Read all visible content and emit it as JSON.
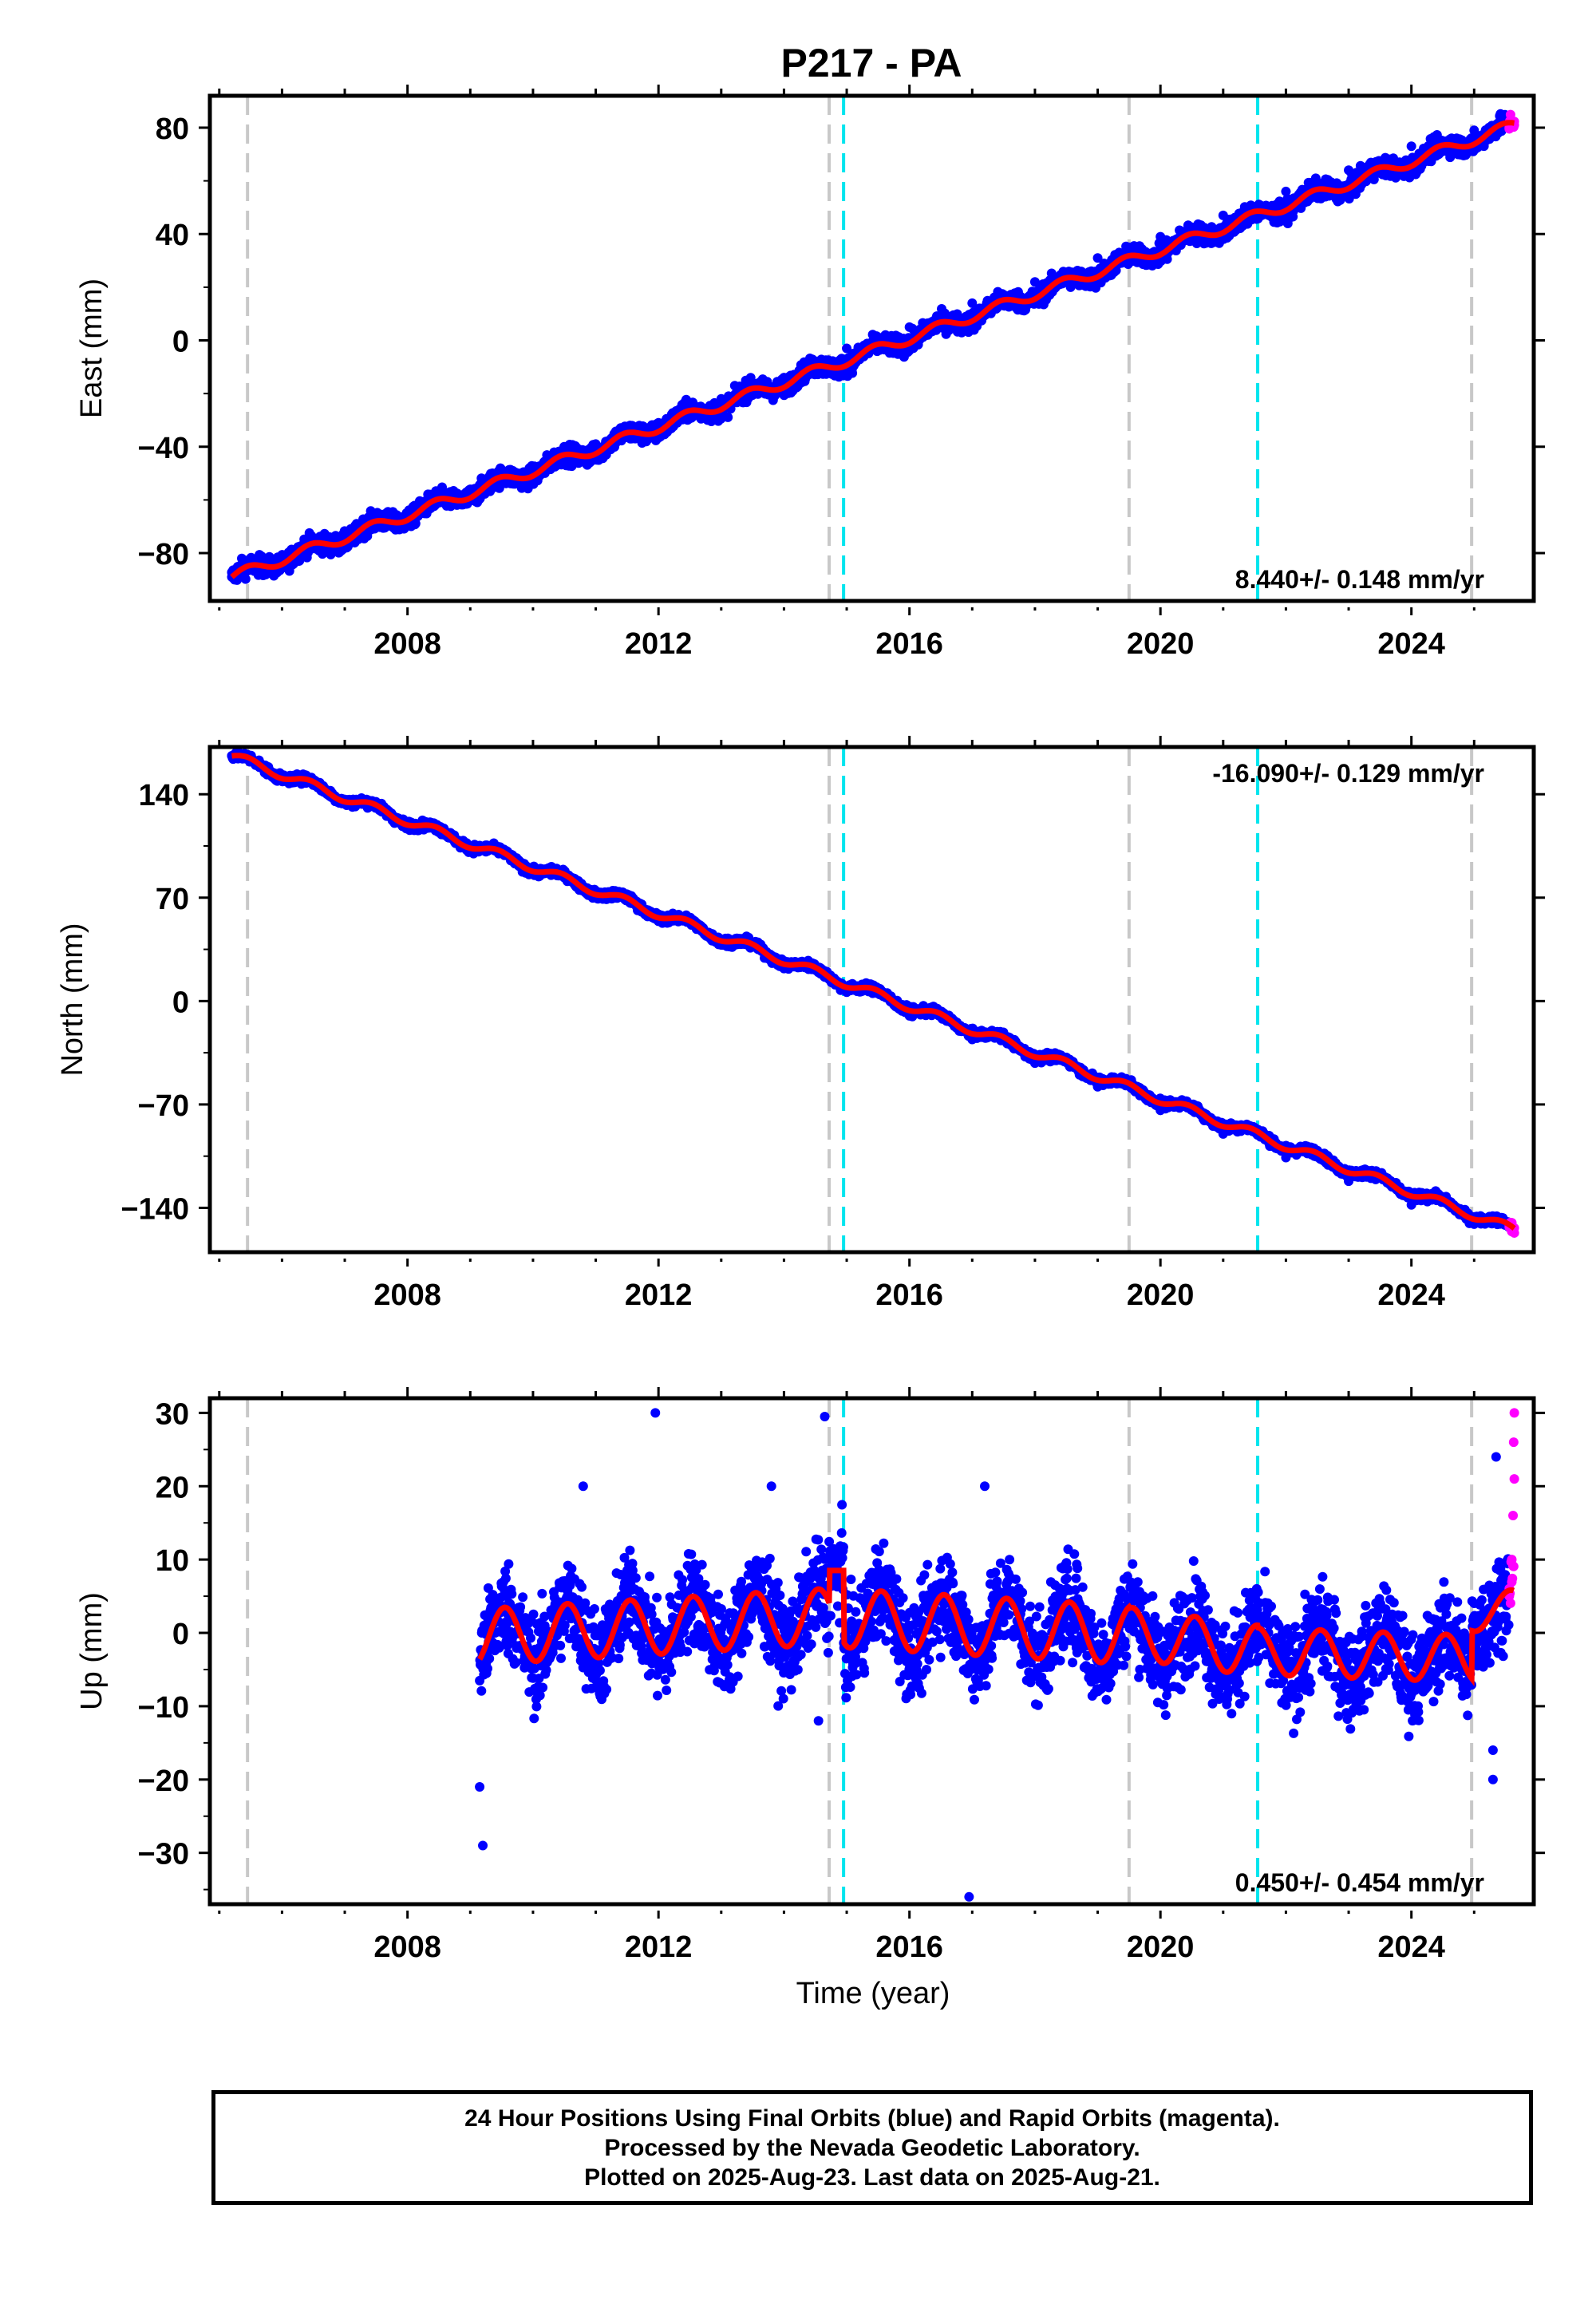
{
  "title": "P217 - PA",
  "colors": {
    "final_orbit_points": "#0000ff",
    "rapid_orbit_points": "#ff00ff",
    "model_fit_line": "#ff0000",
    "equipment_change_line": "#c8c8c8",
    "earthquake_line": "#00e5ee"
  },
  "chart_data": [
    {
      "type": "scatter",
      "panel": "east",
      "ylabel": "East (mm)",
      "xlabel": "",
      "xlim": [
        2004.85,
        2025.95
      ],
      "ylim": [
        -98,
        92
      ],
      "yticks": [
        -80,
        -40,
        0,
        40,
        80
      ],
      "ytick_labels": [
        "−80",
        "−40",
        "0",
        "40",
        "80"
      ],
      "xticks": [
        2008,
        2012,
        2016,
        2020,
        2024
      ],
      "rate_label": "8.440+/- 0.148 mm/yr",
      "rate_label_position": "bottom-right",
      "trend": {
        "start": [
          2005.2,
          -89
        ],
        "end": [
          2025.64,
          81
        ]
      },
      "seasonal_amplitude_mm": 2.0,
      "point_scatter_mm": 2.5,
      "series": [
        {
          "name": "Final orbits",
          "values": [
            [
              2005.2,
              -89
            ],
            [
              2006.0,
              -81
            ],
            [
              2007.0,
              -73
            ],
            [
              2008.0,
              -65
            ],
            [
              2009.0,
              -56
            ],
            [
              2010.0,
              -48
            ],
            [
              2011.0,
              -39
            ],
            [
              2012.0,
              -31
            ],
            [
              2013.0,
              -22
            ],
            [
              2014.0,
              -14
            ],
            [
              2014.7,
              -12
            ],
            [
              2015.0,
              -3
            ],
            [
              2016.0,
              5
            ],
            [
              2017.0,
              14
            ],
            [
              2018.0,
              22
            ],
            [
              2019.0,
              31
            ],
            [
              2019.5,
              35
            ],
            [
              2020.0,
              39
            ],
            [
              2021.0,
              47
            ],
            [
              2022.0,
              56
            ],
            [
              2023.0,
              64
            ],
            [
              2024.0,
              73
            ],
            [
              2025.0,
              79
            ],
            [
              2025.55,
              80
            ]
          ]
        },
        {
          "name": "Rapid orbits",
          "values": [
            [
              2025.56,
              80
            ],
            [
              2025.6,
              82
            ],
            [
              2025.64,
              81
            ]
          ]
        }
      ],
      "vlines_equipment": [
        2005.45,
        2014.72,
        2019.5,
        2024.96
      ],
      "vlines_earthquake": [
        2014.95,
        2021.55
      ]
    },
    {
      "type": "scatter",
      "panel": "north",
      "ylabel": "North (mm)",
      "xlabel": "",
      "xlim": [
        2004.85,
        2025.95
      ],
      "ylim": [
        -170,
        172
      ],
      "yticks": [
        -140,
        -70,
        0,
        70,
        140
      ],
      "ytick_labels": [
        "−140",
        "−70",
        "0",
        "70",
        "140"
      ],
      "xticks": [
        2008,
        2012,
        2016,
        2020,
        2024
      ],
      "rate_label": "-16.090+/- 0.129 mm/yr",
      "rate_label_position": "top-right",
      "trend": {
        "start": [
          2005.2,
          166
        ],
        "end": [
          2025.64,
          -155
        ]
      },
      "seasonal_amplitude_mm": 3.0,
      "point_scatter_mm": 2.0,
      "series": [
        {
          "name": "Final orbits",
          "values": [
            [
              2005.2,
              166
            ],
            [
              2006.0,
              150
            ],
            [
              2007.0,
              134
            ],
            [
              2008.0,
              118
            ],
            [
              2009.0,
              102
            ],
            [
              2010.0,
              86
            ],
            [
              2011.0,
              70
            ],
            [
              2012.0,
              54
            ],
            [
              2013.0,
              38
            ],
            [
              2014.0,
              22
            ],
            [
              2015.0,
              6
            ],
            [
              2016.0,
              -10
            ],
            [
              2017.0,
              -26
            ],
            [
              2018.0,
              -42
            ],
            [
              2019.0,
              -58
            ],
            [
              2020.0,
              -74
            ],
            [
              2021.0,
              -90
            ],
            [
              2022.0,
              -106
            ],
            [
              2023.0,
              -122
            ],
            [
              2024.0,
              -138
            ],
            [
              2025.0,
              -151
            ],
            [
              2025.55,
              -153
            ]
          ]
        },
        {
          "name": "Rapid orbits",
          "values": [
            [
              2025.56,
              -153
            ],
            [
              2025.6,
              -156
            ],
            [
              2025.64,
              -157
            ]
          ]
        }
      ],
      "vlines_equipment": [
        2005.45,
        2014.72,
        2019.5,
        2024.96
      ],
      "vlines_earthquake": [
        2014.95,
        2021.55
      ]
    },
    {
      "type": "scatter",
      "panel": "up",
      "ylabel": "Up (mm)",
      "xlabel": "Time (year)",
      "xlim": [
        2004.85,
        2025.95
      ],
      "ylim": [
        -37,
        32
      ],
      "yticks": [
        -30,
        -20,
        -10,
        0,
        10,
        20,
        30
      ],
      "ytick_labels": [
        "−30",
        "−20",
        "−10",
        "0",
        "10",
        "20",
        "30"
      ],
      "xticks": [
        2008,
        2012,
        2016,
        2020,
        2024
      ],
      "rate_label": "0.450+/- 0.454 mm/yr",
      "rate_label_position": "bottom-right",
      "point_scatter_mm": 4.5,
      "model_segments": [
        {
          "start": 2005.2,
          "end": 2014.72,
          "offset": -2.5,
          "slope": 0.5,
          "amplitude": 3.8
        },
        {
          "start": 2014.72,
          "end": 2014.95,
          "offset": 8.5,
          "slope": 0,
          "amplitude": 0
        },
        {
          "start": 2014.95,
          "end": 2019.5,
          "offset": 2.0,
          "slope": -0.5,
          "amplitude": 4.0
        },
        {
          "start": 2019.5,
          "end": 2021.55,
          "offset": 0.0,
          "slope": -1.2,
          "amplitude": 3.5
        },
        {
          "start": 2021.55,
          "end": 2024.96,
          "offset": -2.5,
          "slope": -0.3,
          "amplitude": 3.2
        },
        {
          "start": 2024.96,
          "end": 2025.64,
          "offset": 2.0,
          "slope": 3.0,
          "amplitude": 2.0
        }
      ],
      "series": [
        {
          "name": "Final orbits",
          "values": [
            [
              2009.15,
              -21
            ],
            [
              2009.2,
              -29
            ],
            [
              2011.95,
              30
            ],
            [
              2014.65,
              29.5
            ],
            [
              2016.95,
              -36
            ],
            [
              2014.55,
              -12
            ],
            [
              2013.8,
              20
            ],
            [
              2010.8,
              20
            ],
            [
              2017.2,
              20
            ],
            [
              2025.35,
              24
            ],
            [
              2025.3,
              -20
            ],
            [
              2025.3,
              -16
            ]
          ]
        },
        {
          "name": "Rapid orbits",
          "values": [
            [
              2025.56,
              5
            ],
            [
              2025.6,
              10
            ],
            [
              2025.62,
              16
            ],
            [
              2025.64,
              21
            ],
            [
              2025.64,
              30
            ],
            [
              2025.63,
              26
            ]
          ]
        }
      ],
      "vlines_equipment": [
        2005.45,
        2014.72,
        2019.5,
        2024.96
      ],
      "vlines_earthquake": [
        2014.95,
        2021.55
      ]
    }
  ],
  "footer": {
    "line1": "24 Hour Positions Using Final Orbits (blue) and Rapid Orbits (magenta).",
    "line2": "Processed by the Nevada Geodetic Laboratory.",
    "line3": "Plotted on 2025-Aug-23. Last data on 2025-Aug-21."
  }
}
